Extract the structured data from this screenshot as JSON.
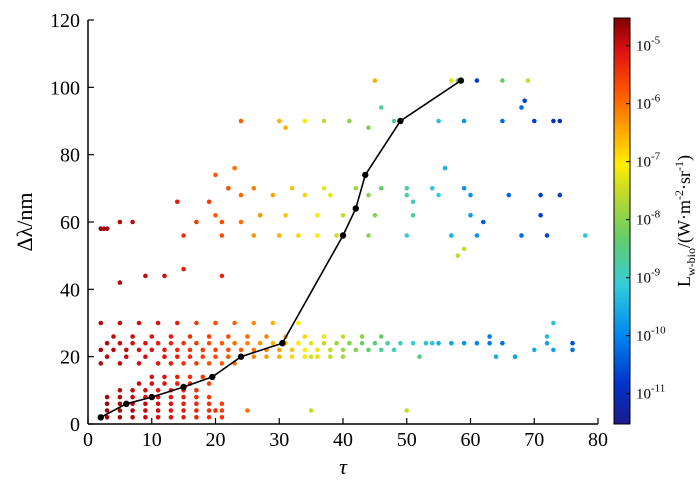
{
  "chart_data": {
    "type": "scatter",
    "xlabel": "τ",
    "ylabel": "Δλ/nm",
    "xlim": [
      0,
      80
    ],
    "ylim": [
      0,
      120
    ],
    "xticks": [
      0,
      10,
      20,
      30,
      40,
      50,
      60,
      70,
      80
    ],
    "yticks": [
      0,
      20,
      40,
      60,
      80,
      100,
      120
    ],
    "grid": false,
    "colorbar": {
      "title_main": "L",
      "title_sub": "w-bio",
      "title_rest": "/(W·m",
      "title_sup1": "-2",
      "title_mid": "·sr",
      "title_sup2": "-1",
      "title_end": ")",
      "scale": "log",
      "range": [
        3e-12,
        3e-05
      ],
      "ticks": [
        {
          "value": 1e-05,
          "base": "10",
          "exp": "-5"
        },
        {
          "value": 1e-06,
          "base": "10",
          "exp": "-6"
        },
        {
          "value": 1e-07,
          "base": "10",
          "exp": "-7"
        },
        {
          "value": 1e-08,
          "base": "10",
          "exp": "-8"
        },
        {
          "value": 1e-09,
          "base": "10",
          "exp": "-9"
        },
        {
          "value": 1e-10,
          "base": "10",
          "exp": "-10"
        },
        {
          "value": 1e-11,
          "base": "10",
          "exp": "-11"
        }
      ]
    },
    "line_series": {
      "x": [
        2,
        6,
        10,
        15,
        19.5,
        24,
        30.5,
        40,
        42,
        43.5,
        49,
        58.5
      ],
      "y": [
        2,
        6,
        8,
        11,
        14,
        20,
        24,
        56,
        64,
        74,
        90,
        102
      ]
    },
    "scatter_points": [
      [
        3,
        2,
        2e-05
      ],
      [
        5,
        2,
        1.8e-05
      ],
      [
        7,
        2,
        1.5e-05
      ],
      [
        9,
        2,
        1.2e-05
      ],
      [
        11,
        2,
        1e-05
      ],
      [
        13,
        2,
        8e-06
      ],
      [
        15,
        2,
        6e-06
      ],
      [
        17,
        2,
        5e-06
      ],
      [
        19,
        2,
        4e-06
      ],
      [
        21,
        2,
        3.5e-06
      ],
      [
        3,
        4,
        2e-05
      ],
      [
        5,
        4,
        1.8e-05
      ],
      [
        7,
        4,
        1.5e-05
      ],
      [
        9,
        4,
        1.2e-05
      ],
      [
        11,
        4,
        1e-05
      ],
      [
        13,
        4,
        8e-06
      ],
      [
        15,
        4,
        7e-06
      ],
      [
        17,
        4,
        5e-06
      ],
      [
        19,
        4,
        4e-06
      ],
      [
        21,
        4,
        3e-06
      ],
      [
        3,
        6,
        2e-05
      ],
      [
        5,
        6,
        1.8e-05
      ],
      [
        7,
        6,
        1.5e-05
      ],
      [
        9,
        6,
        1.2e-05
      ],
      [
        11,
        6,
        1e-05
      ],
      [
        13,
        6,
        8e-06
      ],
      [
        15,
        6,
        6e-06
      ],
      [
        17,
        6,
        5e-06
      ],
      [
        19,
        6,
        4e-06
      ],
      [
        21,
        6,
        3e-06
      ],
      [
        3,
        8,
        1.8e-05
      ],
      [
        5,
        8,
        1.5e-05
      ],
      [
        7,
        8,
        1.2e-05
      ],
      [
        9,
        8,
        1e-05
      ],
      [
        11,
        8,
        8e-06
      ],
      [
        13,
        8,
        7e-06
      ],
      [
        15,
        8,
        6e-06
      ],
      [
        17,
        8,
        4e-06
      ],
      [
        19,
        8,
        3e-06
      ],
      [
        5,
        10,
        1.5e-05
      ],
      [
        7,
        10,
        1.2e-05
      ],
      [
        9,
        10,
        1e-05
      ],
      [
        11,
        10,
        8e-06
      ],
      [
        13,
        10,
        6e-06
      ],
      [
        15,
        10,
        5e-06
      ],
      [
        17,
        10,
        4e-06
      ],
      [
        8,
        12,
        1.2e-05
      ],
      [
        10,
        12,
        1e-05
      ],
      [
        12,
        12,
        8e-06
      ],
      [
        14,
        12,
        6e-06
      ],
      [
        16,
        12,
        4e-06
      ],
      [
        10,
        14,
        1e-05
      ],
      [
        12,
        14,
        8e-06
      ],
      [
        14,
        14,
        6e-06
      ],
      [
        16,
        14,
        4e-06
      ],
      [
        18,
        14,
        3e-06
      ],
      [
        2,
        18,
        1.5e-05
      ],
      [
        5,
        18,
        1.2e-05
      ],
      [
        8,
        18,
        1e-05
      ],
      [
        11,
        18,
        8e-06
      ],
      [
        13,
        18,
        6e-06
      ],
      [
        15,
        18,
        4e-06
      ],
      [
        17,
        18,
        3e-06
      ],
      [
        19,
        18,
        2e-06
      ],
      [
        21,
        18,
        1.5e-06
      ],
      [
        23,
        18,
        1e-06
      ],
      [
        3,
        20,
        1.5e-05
      ],
      [
        6,
        20,
        1.2e-05
      ],
      [
        9,
        20,
        1e-05
      ],
      [
        12,
        20,
        8e-06
      ],
      [
        14,
        20,
        6e-06
      ],
      [
        16,
        20,
        4e-06
      ],
      [
        18,
        20,
        3e-06
      ],
      [
        20,
        20,
        2e-06
      ],
      [
        22,
        20,
        1.5e-06
      ],
      [
        24,
        20,
        1e-06
      ],
      [
        26,
        20,
        6e-07
      ],
      [
        28,
        20,
        4e-07
      ],
      [
        30,
        20,
        3e-07
      ],
      [
        32,
        20,
        1.5e-07
      ],
      [
        34,
        20,
        8e-08
      ],
      [
        36,
        20,
        5e-08
      ],
      [
        38,
        20,
        3e-08
      ],
      [
        40,
        20,
        1.5e-08
      ],
      [
        2,
        22,
        1.8e-05
      ],
      [
        4,
        22,
        1.5e-05
      ],
      [
        6,
        22,
        1.2e-05
      ],
      [
        8,
        22,
        1e-05
      ],
      [
        10,
        22,
        8e-06
      ],
      [
        12,
        22,
        6e-06
      ],
      [
        14,
        22,
        5e-06
      ],
      [
        16,
        22,
        4e-06
      ],
      [
        18,
        22,
        3e-06
      ],
      [
        20,
        22,
        2.5e-06
      ],
      [
        22,
        22,
        2e-06
      ],
      [
        24,
        22,
        1.5e-06
      ],
      [
        26,
        22,
        1e-06
      ],
      [
        28,
        22,
        7e-07
      ],
      [
        30,
        22,
        4e-07
      ],
      [
        32,
        22,
        2e-07
      ],
      [
        34,
        22,
        1e-07
      ],
      [
        36,
        22,
        6e-08
      ],
      [
        38,
        22,
        3e-08
      ],
      [
        40,
        22,
        1.5e-08
      ],
      [
        42,
        22,
        8e-09
      ],
      [
        44,
        22,
        4e-09
      ],
      [
        46,
        22,
        2e-09
      ],
      [
        48,
        22,
        1e-09
      ],
      [
        3,
        24,
        1.5e-05
      ],
      [
        5,
        24,
        1.2e-05
      ],
      [
        7,
        24,
        1e-05
      ],
      [
        9,
        24,
        8e-06
      ],
      [
        11,
        24,
        6e-06
      ],
      [
        13,
        24,
        5e-06
      ],
      [
        15,
        24,
        4e-06
      ],
      [
        17,
        24,
        3e-06
      ],
      [
        19,
        24,
        2e-06
      ],
      [
        21,
        24,
        1.5e-06
      ],
      [
        23,
        24,
        1e-06
      ],
      [
        25,
        24,
        7e-07
      ],
      [
        27,
        24,
        5e-07
      ],
      [
        29,
        24,
        3e-07
      ],
      [
        31,
        24,
        2e-07
      ],
      [
        33,
        24,
        1e-07
      ],
      [
        35,
        24,
        5e-08
      ],
      [
        37,
        24,
        3e-08
      ],
      [
        39,
        24,
        1.5e-08
      ],
      [
        41,
        24,
        8e-09
      ],
      [
        43,
        24,
        5e-09
      ],
      [
        45,
        24,
        3e-09
      ],
      [
        47,
        24,
        2e-09
      ],
      [
        49,
        24,
        1.2e-09
      ],
      [
        51,
        24,
        8e-10
      ],
      [
        53,
        24,
        5e-10
      ],
      [
        55,
        24,
        3e-10
      ],
      [
        57,
        24,
        2e-10
      ],
      [
        59,
        24,
        1.5e-10
      ],
      [
        61,
        24,
        1e-10
      ],
      [
        63,
        24,
        8e-11
      ],
      [
        65,
        24,
        6e-11
      ],
      [
        72,
        24,
        2e-10
      ],
      [
        4,
        26,
        1.2e-05
      ],
      [
        7,
        26,
        1e-05
      ],
      [
        10,
        26,
        8e-06
      ],
      [
        13,
        26,
        6e-06
      ],
      [
        16,
        26,
        4e-06
      ],
      [
        19,
        26,
        3e-06
      ],
      [
        22,
        26,
        2e-06
      ],
      [
        25,
        26,
        1.2e-06
      ],
      [
        28,
        26,
        7e-07
      ],
      [
        31,
        26,
        3e-07
      ],
      [
        34,
        26,
        1.5e-07
      ],
      [
        37,
        26,
        6e-08
      ],
      [
        40,
        26,
        3e-08
      ],
      [
        43,
        26,
        1e-08
      ],
      [
        46,
        26,
        5e-09
      ],
      [
        63,
        26,
        8e-11
      ],
      [
        2,
        30,
        1.5e-05
      ],
      [
        5,
        30,
        1.2e-05
      ],
      [
        8,
        30,
        1e-05
      ],
      [
        11,
        30,
        8e-06
      ],
      [
        14,
        30,
        6e-06
      ],
      [
        17,
        30,
        3e-06
      ],
      [
        20,
        30,
        2e-06
      ],
      [
        23,
        30,
        1.2e-06
      ],
      [
        26,
        30,
        6e-07
      ],
      [
        29,
        30,
        3e-07
      ],
      [
        73,
        30,
        5e-10
      ],
      [
        5,
        42,
        1.5e-05
      ],
      [
        9,
        44,
        1.2e-05
      ],
      [
        12,
        44,
        1e-05
      ],
      [
        21,
        44,
        5e-06
      ],
      [
        15,
        46,
        6e-06
      ],
      [
        2,
        58,
        2e-05
      ],
      [
        2.5,
        58,
        2e-05
      ],
      [
        3,
        58,
        1.8e-05
      ],
      [
        5,
        60,
        1.5e-05
      ],
      [
        7,
        60,
        1.2e-05
      ],
      [
        17,
        60,
        3e-06
      ],
      [
        21,
        60,
        2e-06
      ],
      [
        24,
        60,
        1e-06
      ],
      [
        15,
        56,
        4e-06
      ],
      [
        21,
        56,
        2e-06
      ],
      [
        26,
        56,
        5e-07
      ],
      [
        30,
        56,
        3e-07
      ],
      [
        33,
        56,
        1.5e-07
      ],
      [
        36,
        56,
        8e-08
      ],
      [
        39,
        56,
        4e-08
      ],
      [
        44,
        56,
        1e-08
      ],
      [
        50,
        56,
        1e-09
      ],
      [
        57,
        56,
        3e-10
      ],
      [
        61,
        56,
        1.5e-10
      ],
      [
        68,
        56,
        5e-11
      ],
      [
        72,
        56,
        2e-11
      ],
      [
        78,
        56,
        6e-10
      ],
      [
        20,
        62,
        1.5e-06
      ],
      [
        27,
        62,
        5e-07
      ],
      [
        31,
        62,
        2e-07
      ],
      [
        36,
        62,
        8e-08
      ],
      [
        40,
        62,
        3e-08
      ],
      [
        45,
        62,
        8e-09
      ],
      [
        51,
        62,
        2e-09
      ],
      [
        60,
        62,
        1.5e-10
      ],
      [
        71,
        62,
        2e-11
      ],
      [
        14,
        66,
        6e-06
      ],
      [
        19,
        66,
        3e-06
      ],
      [
        24,
        68,
        1.2e-06
      ],
      [
        29,
        68,
        4e-07
      ],
      [
        34,
        68,
        1.5e-07
      ],
      [
        38,
        68,
        6e-08
      ],
      [
        44,
        68,
        1e-08
      ],
      [
        50,
        68,
        2e-09
      ],
      [
        55,
        68,
        8e-10
      ],
      [
        60,
        68,
        1.5e-10
      ],
      [
        66,
        68,
        5e-11
      ],
      [
        71,
        68,
        2e-11
      ],
      [
        74,
        68,
        2e-11
      ],
      [
        22,
        70,
        2e-06
      ],
      [
        26,
        70,
        8e-07
      ],
      [
        32,
        70,
        2e-07
      ],
      [
        37,
        70,
        6e-08
      ],
      [
        42,
        70,
        1.5e-08
      ],
      [
        46,
        70,
        5e-09
      ],
      [
        50,
        70,
        2e-09
      ],
      [
        54,
        70,
        6e-10
      ],
      [
        59,
        70,
        1.5e-10
      ],
      [
        20,
        74,
        1.5e-06
      ],
      [
        23,
        76,
        1e-06
      ],
      [
        24,
        90,
        1.5e-06
      ],
      [
        30,
        90,
        3e-07
      ],
      [
        34,
        90,
        1e-07
      ],
      [
        37,
        90,
        3e-08
      ],
      [
        41,
        90,
        1e-08
      ],
      [
        48,
        90,
        2e-09
      ],
      [
        55,
        90,
        5e-10
      ],
      [
        59,
        90,
        1.5e-10
      ],
      [
        65,
        90,
        6e-11
      ],
      [
        70,
        90,
        2e-11
      ],
      [
        73,
        90,
        1e-11
      ],
      [
        74,
        90,
        1e-11
      ],
      [
        31,
        88,
        3e-07
      ],
      [
        44,
        88,
        8e-09
      ],
      [
        68,
        94,
        5e-11
      ],
      [
        68.5,
        96,
        2e-11
      ],
      [
        45,
        102,
        3e-07
      ],
      [
        57,
        102,
        5e-08
      ],
      [
        58,
        102,
        6e-09
      ],
      [
        61,
        102,
        2e-11
      ],
      [
        65,
        102,
        5e-09
      ],
      [
        69,
        102,
        3e-08
      ],
      [
        46,
        94,
        2e-09
      ],
      [
        51,
        66,
        1.5e-09
      ],
      [
        62,
        60,
        4e-11
      ],
      [
        56,
        76,
        3e-10
      ],
      [
        58,
        50,
        3e-08
      ],
      [
        59,
        52,
        3e-08
      ],
      [
        20,
        4,
        4e-06
      ],
      [
        25,
        4,
        1e-06
      ],
      [
        35,
        4,
        3e-08
      ],
      [
        50,
        4,
        3e-08
      ],
      [
        19,
        12,
        3e-06
      ],
      [
        35,
        20,
        4e-08
      ],
      [
        33,
        30,
        1e-07
      ],
      [
        52,
        20,
        3e-09
      ],
      [
        54,
        24,
        6e-10
      ],
      [
        67,
        20,
        2e-10
      ],
      [
        70,
        22,
        3e-10
      ],
      [
        73,
        22,
        2e-10
      ],
      [
        76,
        22,
        6e-11
      ],
      [
        76,
        24,
        3e-11
      ],
      [
        72,
        26,
        5e-10
      ],
      [
        64,
        20,
        3e-10
      ]
    ]
  }
}
